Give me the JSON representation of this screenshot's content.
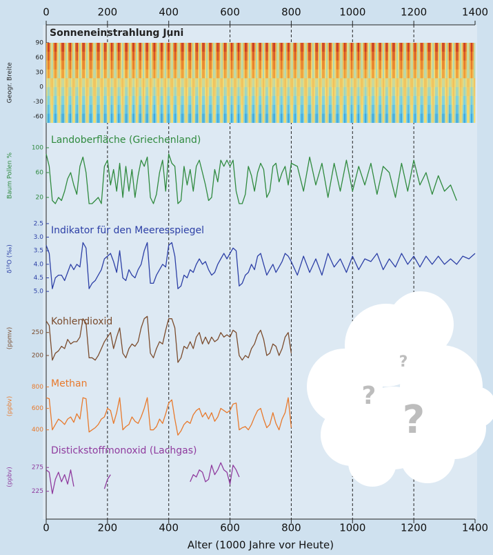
{
  "x_axis": {
    "label": "Alter (1000 Jahre vor Heute)",
    "xlim": [
      0,
      1400
    ],
    "xticks": [
      0,
      200,
      400,
      600,
      800,
      1000,
      1200,
      1400
    ]
  },
  "chart_data": [
    {
      "type": "heatmap",
      "title": "Sonneneinstrahlung Juni",
      "ylabel": "Geogr. Breite",
      "ylim": [
        -72,
        90
      ],
      "yticks": [
        90,
        60,
        30,
        0,
        -30,
        -60
      ]
    },
    {
      "type": "line",
      "title": "Landoberfläche (Griechenland)",
      "ylabel": "Baum Pollen %",
      "color": "#2f8a3e",
      "ylim": [
        0,
        110
      ],
      "yticks": [
        100,
        60,
        20
      ],
      "x": [
        0,
        10,
        20,
        30,
        40,
        50,
        60,
        70,
        80,
        90,
        100,
        110,
        120,
        130,
        140,
        150,
        160,
        170,
        180,
        190,
        200,
        210,
        220,
        230,
        240,
        250,
        260,
        270,
        280,
        290,
        300,
        310,
        320,
        330,
        340,
        350,
        360,
        370,
        380,
        390,
        400,
        410,
        420,
        430,
        440,
        450,
        460,
        470,
        480,
        490,
        500,
        510,
        520,
        530,
        540,
        550,
        560,
        570,
        580,
        590,
        600,
        610,
        620,
        630,
        640,
        650,
        660,
        670,
        680,
        690,
        700,
        710,
        720,
        730,
        740,
        750,
        760,
        770,
        780,
        790,
        800,
        820,
        840,
        860,
        880,
        900,
        920,
        940,
        960,
        980,
        1000,
        1020,
        1040,
        1060,
        1080,
        1100,
        1120,
        1140,
        1160,
        1180,
        1200,
        1220,
        1240,
        1260,
        1280,
        1300,
        1320,
        1340
      ],
      "values": [
        90,
        70,
        15,
        10,
        20,
        15,
        30,
        50,
        60,
        40,
        25,
        70,
        85,
        60,
        10,
        10,
        15,
        20,
        10,
        70,
        80,
        40,
        65,
        30,
        75,
        20,
        70,
        30,
        65,
        20,
        55,
        80,
        70,
        85,
        20,
        10,
        25,
        60,
        80,
        30,
        90,
        75,
        70,
        10,
        15,
        70,
        40,
        65,
        30,
        70,
        80,
        60,
        40,
        15,
        20,
        65,
        45,
        80,
        70,
        80,
        70,
        80,
        30,
        10,
        10,
        25,
        70,
        55,
        30,
        60,
        75,
        65,
        20,
        30,
        70,
        75,
        45,
        60,
        70,
        40,
        75,
        70,
        30,
        85,
        40,
        75,
        20,
        75,
        30,
        80,
        30,
        70,
        40,
        75,
        25,
        70,
        60,
        20,
        75,
        30,
        80,
        40,
        60,
        25,
        55,
        30,
        40,
        15
      ]
    },
    {
      "type": "line",
      "title": "Indikator für den Meeresspiegel",
      "ylabel": "δ¹⁸O (‰)",
      "color": "#2c3fa6",
      "ylim": [
        5.2,
        2.4
      ],
      "yticks": [
        2.5,
        {
          "value": 3,
          "label": "3.0"
        },
        3.5,
        {
          "value": 4,
          "label": "4.0"
        },
        4.5,
        {
          "value": 5,
          "label": "5.0"
        }
      ],
      "x": [
        0,
        10,
        20,
        30,
        40,
        50,
        60,
        70,
        80,
        90,
        100,
        110,
        120,
        130,
        140,
        150,
        160,
        170,
        180,
        190,
        200,
        210,
        220,
        230,
        240,
        250,
        260,
        270,
        280,
        290,
        300,
        310,
        320,
        330,
        340,
        350,
        360,
        370,
        380,
        390,
        400,
        410,
        420,
        430,
        440,
        450,
        460,
        470,
        480,
        490,
        500,
        510,
        520,
        530,
        540,
        550,
        560,
        570,
        580,
        590,
        600,
        610,
        620,
        630,
        640,
        650,
        660,
        670,
        680,
        690,
        700,
        710,
        720,
        730,
        740,
        750,
        760,
        770,
        780,
        790,
        800,
        820,
        840,
        860,
        880,
        900,
        920,
        940,
        960,
        980,
        1000,
        1020,
        1040,
        1060,
        1080,
        1100,
        1120,
        1140,
        1160,
        1180,
        1200,
        1220,
        1240,
        1260,
        1280,
        1300,
        1320,
        1340,
        1360,
        1380,
        1400
      ],
      "values": [
        3.3,
        3.6,
        4.9,
        4.5,
        4.4,
        4.4,
        4.6,
        4.3,
        4.0,
        4.2,
        4.0,
        4.1,
        3.2,
        3.4,
        4.9,
        4.7,
        4.6,
        4.4,
        4.2,
        3.8,
        3.7,
        3.6,
        3.9,
        4.3,
        3.5,
        4.5,
        4.6,
        4.2,
        4.4,
        4.5,
        4.2,
        4.0,
        3.5,
        3.2,
        4.7,
        4.7,
        4.4,
        4.2,
        4.0,
        4.1,
        3.3,
        3.2,
        3.7,
        4.9,
        4.8,
        4.4,
        4.5,
        4.2,
        4.3,
        4.0,
        3.8,
        4.0,
        3.9,
        4.2,
        4.4,
        4.3,
        4.0,
        3.8,
        3.6,
        3.8,
        3.6,
        3.4,
        3.5,
        4.8,
        4.7,
        4.4,
        4.3,
        4.0,
        4.2,
        3.7,
        3.6,
        4.0,
        4.4,
        4.2,
        4.0,
        4.3,
        4.1,
        3.9,
        3.6,
        3.7,
        3.9,
        4.4,
        3.7,
        4.3,
        3.8,
        4.4,
        3.6,
        4.1,
        3.8,
        4.3,
        3.7,
        4.2,
        3.8,
        3.9,
        3.6,
        4.2,
        3.8,
        4.1,
        3.6,
        4.0,
        3.7,
        4.1,
        3.7,
        4.0,
        3.7,
        4.0,
        3.8,
        4.0,
        3.7,
        3.8,
        3.6
      ]
    },
    {
      "type": "line",
      "title": "Kohlendioxid",
      "ylabel": "(ppmv)",
      "color": "#7a4b2c",
      "ylim": [
        185,
        290
      ],
      "yticks": [
        250,
        200
      ],
      "x": [
        0,
        10,
        20,
        30,
        40,
        50,
        60,
        70,
        80,
        90,
        100,
        110,
        120,
        130,
        140,
        150,
        160,
        170,
        180,
        190,
        200,
        210,
        220,
        230,
        240,
        250,
        260,
        270,
        280,
        290,
        300,
        310,
        320,
        330,
        340,
        350,
        360,
        370,
        380,
        390,
        400,
        410,
        420,
        430,
        440,
        450,
        460,
        470,
        480,
        490,
        500,
        510,
        520,
        530,
        540,
        550,
        560,
        570,
        580,
        590,
        600,
        610,
        620,
        630,
        640,
        650,
        660,
        670,
        680,
        690,
        700,
        710,
        720,
        730,
        740,
        750,
        760,
        770,
        780,
        790,
        800
      ],
      "values": [
        275,
        265,
        190,
        205,
        210,
        220,
        215,
        235,
        225,
        230,
        230,
        240,
        280,
        270,
        195,
        195,
        190,
        200,
        215,
        230,
        240,
        250,
        215,
        240,
        260,
        205,
        195,
        215,
        225,
        220,
        230,
        260,
        280,
        285,
        205,
        195,
        215,
        230,
        225,
        255,
        280,
        280,
        260,
        185,
        195,
        220,
        215,
        230,
        215,
        240,
        250,
        225,
        240,
        225,
        240,
        230,
        235,
        250,
        240,
        245,
        240,
        255,
        250,
        200,
        190,
        200,
        195,
        215,
        225,
        245,
        255,
        235,
        200,
        205,
        225,
        220,
        200,
        215,
        240,
        250,
        205
      ]
    },
    {
      "type": "line",
      "title": "Methan",
      "ylabel": "(ppbv)",
      "color": "#e8792b",
      "ylim": [
        340,
        900
      ],
      "yticks": [
        800,
        600,
        400
      ],
      "x": [
        0,
        10,
        20,
        30,
        40,
        50,
        60,
        70,
        80,
        90,
        100,
        110,
        120,
        130,
        140,
        150,
        160,
        170,
        180,
        190,
        200,
        210,
        220,
        230,
        240,
        250,
        260,
        270,
        280,
        290,
        300,
        310,
        320,
        330,
        340,
        350,
        360,
        370,
        380,
        390,
        400,
        410,
        420,
        430,
        440,
        450,
        460,
        470,
        480,
        490,
        500,
        510,
        520,
        530,
        540,
        550,
        560,
        570,
        580,
        590,
        600,
        610,
        620,
        630,
        640,
        650,
        660,
        670,
        680,
        690,
        700,
        710,
        720,
        730,
        740,
        750,
        760,
        770,
        780,
        790,
        800
      ],
      "values": [
        700,
        690,
        400,
        450,
        500,
        480,
        450,
        500,
        520,
        470,
        550,
        500,
        700,
        690,
        380,
        400,
        420,
        450,
        500,
        520,
        600,
        580,
        460,
        560,
        700,
        400,
        430,
        450,
        520,
        480,
        460,
        520,
        600,
        700,
        400,
        400,
        430,
        500,
        460,
        550,
        650,
        680,
        500,
        350,
        390,
        450,
        480,
        460,
        540,
        580,
        600,
        520,
        560,
        500,
        560,
        480,
        520,
        600,
        580,
        560,
        580,
        640,
        650,
        400,
        420,
        430,
        400,
        450,
        520,
        580,
        600,
        500,
        420,
        450,
        560,
        460,
        400,
        500,
        560,
        700,
        420
      ]
    },
    {
      "type": "line",
      "title": "Distickstoffmonoxid (Lachgas)",
      "ylabel": "(ppbv)",
      "color": "#8f3b9e",
      "ylim": [
        210,
        300
      ],
      "yticks": [
        275,
        225
      ],
      "x": [
        0,
        10,
        20,
        30,
        40,
        50,
        60,
        70,
        80,
        90,
        100,
        110,
        120,
        130,
        140,
        150,
        160,
        170,
        180,
        190,
        200,
        210,
        220,
        230,
        240,
        250,
        260,
        270,
        280,
        290,
        300,
        310,
        320,
        330,
        340,
        350,
        360,
        370,
        380,
        390,
        400,
        410,
        420,
        430,
        440,
        450,
        460,
        470,
        480,
        490,
        500,
        510,
        520,
        530,
        540,
        550,
        560,
        570,
        580,
        590,
        600,
        610,
        620,
        630,
        640
      ],
      "values": [
        270,
        265,
        220,
        250,
        265,
        245,
        260,
        240,
        270,
        235,
        null,
        null,
        null,
        null,
        null,
        null,
        null,
        null,
        null,
        230,
        250,
        260,
        null,
        null,
        null,
        null,
        null,
        null,
        null,
        null,
        null,
        null,
        null,
        null,
        null,
        null,
        null,
        null,
        null,
        null,
        null,
        null,
        null,
        null,
        null,
        null,
        null,
        245,
        260,
        255,
        270,
        265,
        245,
        250,
        280,
        260,
        270,
        285,
        270,
        265,
        240,
        280,
        270,
        255,
        null
      ]
    }
  ],
  "cloud_text": [
    "?",
    "?",
    "?"
  ]
}
